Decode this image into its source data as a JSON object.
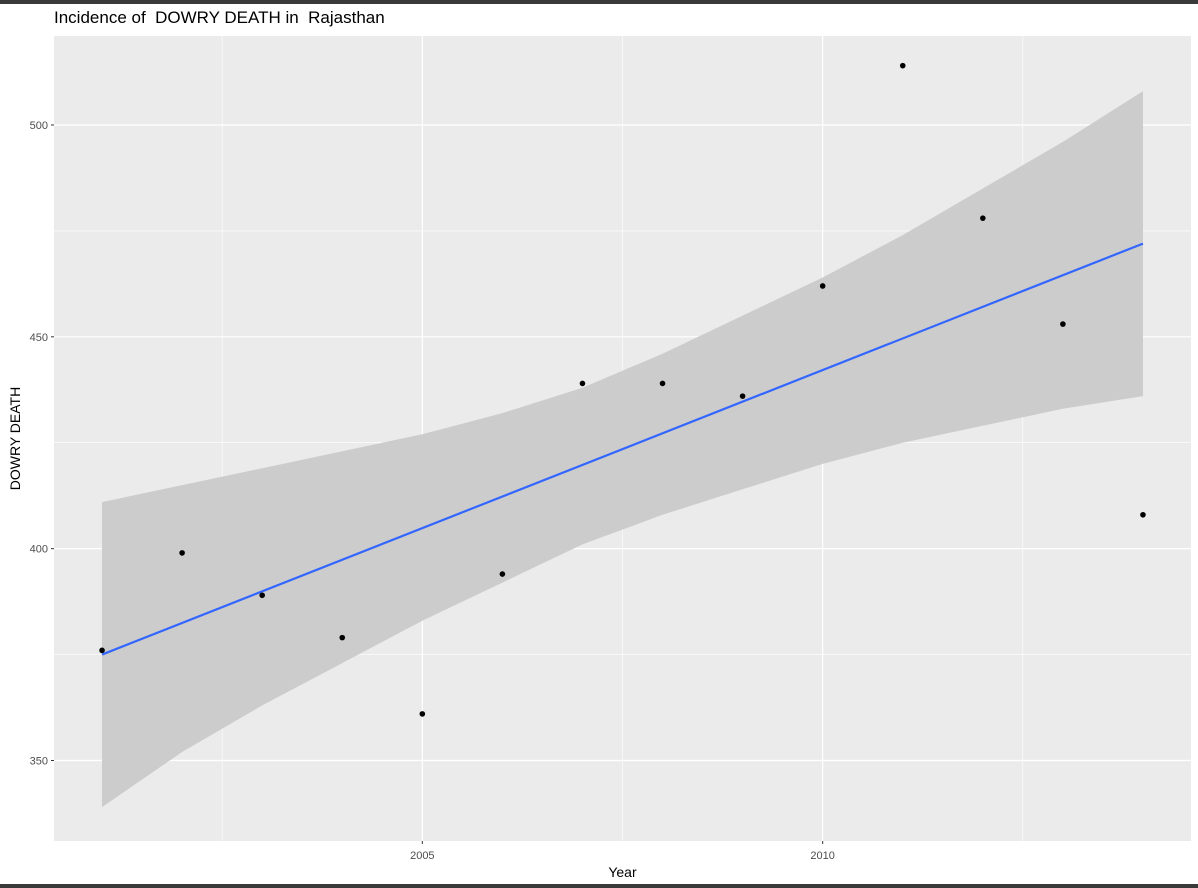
{
  "chart_data": {
    "type": "scatter",
    "title": "Incidence of  DOWRY DEATH in  Rajasthan",
    "xlabel": "Year",
    "ylabel": "DOWRY DEATH",
    "xlim": [
      2000.4,
      2014.6
    ],
    "ylim": [
      331,
      521
    ],
    "x_ticks": [
      2005,
      2010
    ],
    "x_tick_labels": [
      "2005",
      "2010"
    ],
    "x_minor_ticks": [
      2002.5,
      2007.5,
      2012.5
    ],
    "y_ticks": [
      350,
      400,
      450,
      500
    ],
    "y_tick_labels": [
      "350",
      "400",
      "450",
      "500"
    ],
    "y_minor_ticks": [
      375,
      425,
      475
    ],
    "grid": true,
    "points": {
      "x": [
        2001,
        2002,
        2003,
        2004,
        2005,
        2006,
        2007,
        2008,
        2009,
        2010,
        2011,
        2012,
        2013,
        2014
      ],
      "y": [
        376,
        399,
        389,
        379,
        361,
        394,
        439,
        439,
        436,
        462,
        514,
        478,
        453,
        408
      ]
    },
    "trend": {
      "method": "linear",
      "x": [
        2001,
        2014
      ],
      "y": [
        375,
        472
      ],
      "color": "#3366FF"
    },
    "confidence_band": {
      "x": [
        2001,
        2002,
        2003,
        2004,
        2005,
        2006,
        2007,
        2008,
        2009,
        2010,
        2011,
        2012,
        2013,
        2014
      ],
      "lower": [
        339,
        352,
        363,
        373,
        383,
        392,
        401,
        408,
        414,
        420,
        425,
        429,
        433,
        436
      ],
      "upper": [
        411,
        415,
        419,
        423,
        427,
        432,
        438,
        446,
        455,
        464,
        474,
        485,
        496,
        508
      ],
      "color": "#cccccc"
    },
    "colors": {
      "panel": "#EBEBEB",
      "grid": "#FFFFFF",
      "points": "#000000"
    }
  }
}
